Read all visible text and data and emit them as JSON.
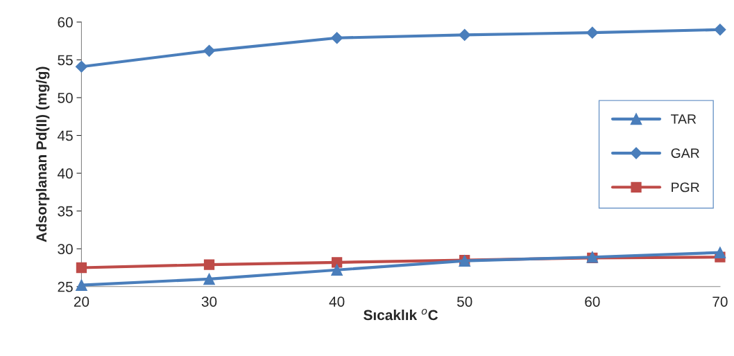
{
  "chart_data": {
    "type": "line",
    "xlabel": "Sıcaklık $^{o}$C",
    "ylabel": "Adsorplanan Pd(II) (mg/g)",
    "x": [
      20,
      30,
      40,
      50,
      60,
      70
    ],
    "series": [
      {
        "name": "TAR",
        "color": "#4a7ebb",
        "marker": "triangle",
        "values": [
          25.2,
          26.0,
          27.2,
          28.4,
          28.9,
          29.5
        ]
      },
      {
        "name": "GAR",
        "color": "#4a7ebb",
        "marker": "diamond",
        "values": [
          54.1,
          56.2,
          57.9,
          58.3,
          58.6,
          59.0
        ]
      },
      {
        "name": "PGR",
        "color": "#be4b48",
        "marker": "square",
        "values": [
          27.5,
          27.9,
          28.2,
          28.5,
          28.8,
          28.9
        ]
      }
    ],
    "xlim": [
      20,
      70
    ],
    "xticks": [
      20,
      30,
      40,
      50,
      60,
      70
    ],
    "ylim": [
      25,
      60
    ],
    "yticks": [
      25,
      30,
      35,
      40,
      45,
      50,
      55,
      60
    ],
    "grid": false,
    "legend": "right",
    "line_style": "solid"
  }
}
